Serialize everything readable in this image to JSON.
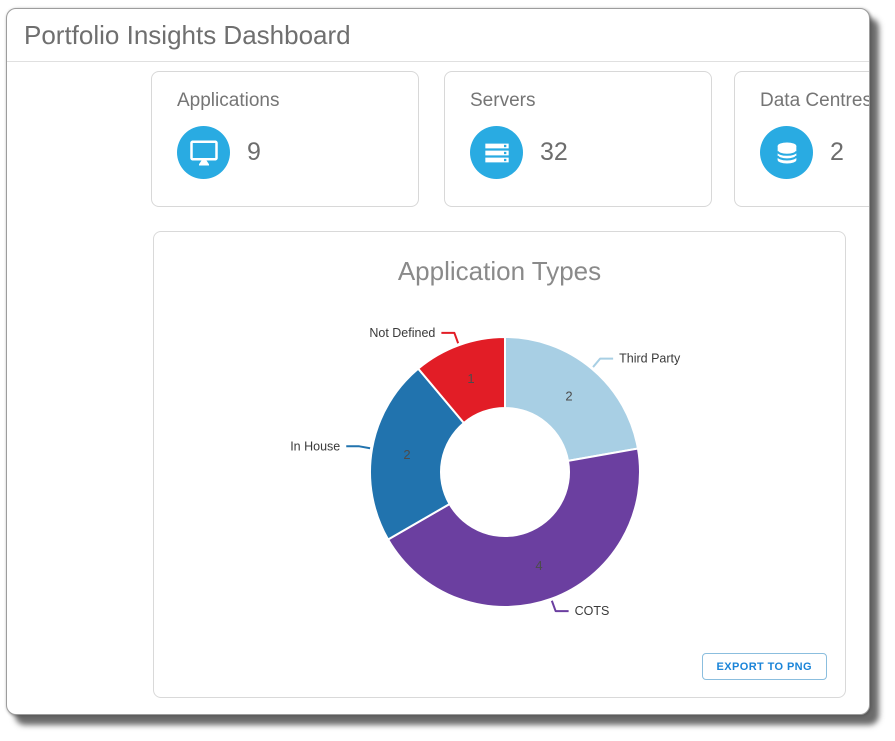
{
  "header": {
    "title": "Portfolio Insights Dashboard"
  },
  "cards": [
    {
      "label": "Applications",
      "value": "9",
      "icon": "monitor-icon"
    },
    {
      "label": "Servers",
      "value": "32",
      "icon": "server-stack-icon"
    },
    {
      "label": "Data Centres",
      "value": "2",
      "icon": "database-icon"
    }
  ],
  "chart_card": {
    "title": "Application Types",
    "export_button": "EXPORT TO PNG"
  },
  "chart_data": {
    "type": "pie",
    "subtype": "donut",
    "title": "Application Types",
    "total": 9,
    "direction": "clockwise",
    "start_angle_deg": 0,
    "value_labels": "inside",
    "category_labels": "outside-leader-lines",
    "legend": "none",
    "slices": [
      {
        "label": "Third Party",
        "value": 2,
        "color": "#a8cfe4"
      },
      {
        "label": "COTS",
        "value": 4,
        "color": "#6b3fa0"
      },
      {
        "label": "In House",
        "value": 2,
        "color": "#2173ae"
      },
      {
        "label": "Not Defined",
        "value": 1,
        "color": "#e21d26"
      }
    ]
  },
  "colors": {
    "stat_icon_circle": "#29abe2",
    "export_button_text": "#1a84d8",
    "window_shadow": "#6f6f6f"
  }
}
